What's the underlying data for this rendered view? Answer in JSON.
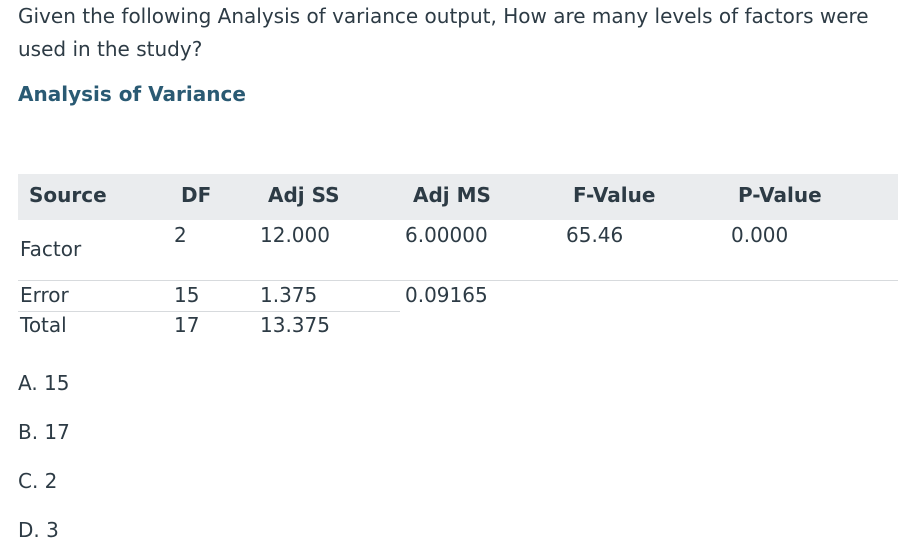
{
  "question": {
    "text": "Given the following Analysis of variance output, How are many levels of  factors were used in the study?"
  },
  "section_title": "Analysis of Variance",
  "table": {
    "headers": [
      "Source",
      "DF",
      "Adj SS",
      "Adj MS",
      "F-Value",
      "P-Value"
    ],
    "rows": [
      {
        "source": "Factor",
        "df": "2",
        "adj_ss": "12.000",
        "adj_ms": "6.00000",
        "f_value": "65.46",
        "p_value": "0.000"
      },
      {
        "source": "Error",
        "df": "15",
        "adj_ss": "1.375",
        "adj_ms": "0.09165",
        "f_value": "",
        "p_value": ""
      },
      {
        "source": "Total",
        "df": "17",
        "adj_ss": "13.375",
        "adj_ms": "",
        "f_value": "",
        "p_value": ""
      }
    ]
  },
  "options": [
    "A. 15",
    "B. 17",
    "C. 2",
    "D. 3"
  ]
}
